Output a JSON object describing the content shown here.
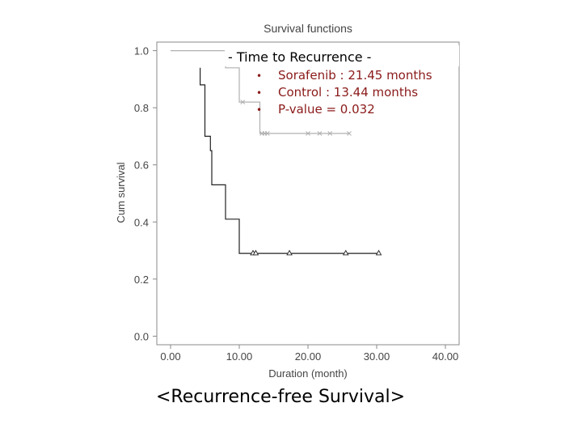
{
  "chart_data": {
    "type": "line",
    "title": "Survival functions",
    "xlabel": "Duration (month)",
    "ylabel": "Cum survival",
    "xlim": [
      -2,
      42
    ],
    "ylim": [
      -0.03,
      1.03
    ],
    "xticks": [
      "0.00",
      "10.00",
      "20.00",
      "30.00",
      "40.00"
    ],
    "xtick_values": [
      0,
      10,
      20,
      30,
      40
    ],
    "yticks": [
      "0.0",
      "0.2",
      "0.4",
      "0.6",
      "0.8",
      "1.0"
    ],
    "ytick_values": [
      0.0,
      0.2,
      0.4,
      0.6,
      0.8,
      1.0
    ],
    "grid": false,
    "series": [
      {
        "color": "#b0b0b0",
        "steps": [
          [
            0,
            1.0
          ],
          [
            8.0,
            1.0
          ],
          [
            8.0,
            0.94
          ],
          [
            10.0,
            0.94
          ],
          [
            10.0,
            0.82
          ],
          [
            13.0,
            0.82
          ],
          [
            13.0,
            0.71
          ],
          [
            26.0,
            0.71
          ]
        ],
        "censor_marker": "x",
        "censored": [
          [
            10.5,
            0.82
          ],
          [
            13.3,
            0.71
          ],
          [
            13.7,
            0.71
          ],
          [
            14.1,
            0.71
          ],
          [
            20.0,
            0.71
          ],
          [
            21.7,
            0.71
          ],
          [
            23.2,
            0.71
          ],
          [
            26.0,
            0.71
          ]
        ]
      },
      {
        "color": "#222222",
        "steps": [
          [
            4.3,
            0.94
          ],
          [
            4.3,
            0.88
          ],
          [
            5.0,
            0.88
          ],
          [
            5.0,
            0.7
          ],
          [
            5.8,
            0.7
          ],
          [
            5.8,
            0.65
          ],
          [
            6.0,
            0.65
          ],
          [
            6.0,
            0.53
          ],
          [
            8.0,
            0.53
          ],
          [
            8.0,
            0.41
          ],
          [
            10.0,
            0.41
          ],
          [
            10.0,
            0.29
          ],
          [
            30.3,
            0.29
          ]
        ],
        "censor_marker": "triangle",
        "censored": [
          [
            12.0,
            0.29
          ],
          [
            12.4,
            0.29
          ],
          [
            17.3,
            0.29
          ],
          [
            25.5,
            0.29
          ],
          [
            30.3,
            0.29
          ]
        ]
      }
    ]
  },
  "annotation": {
    "heading": "- Time to Recurrence -",
    "items": [
      "Sorafenib : 21.45 months",
      "Control : 13.44 months",
      "P-value = 0.032"
    ],
    "bullet": "•"
  },
  "caption": "<Recurrence-free Survival>"
}
